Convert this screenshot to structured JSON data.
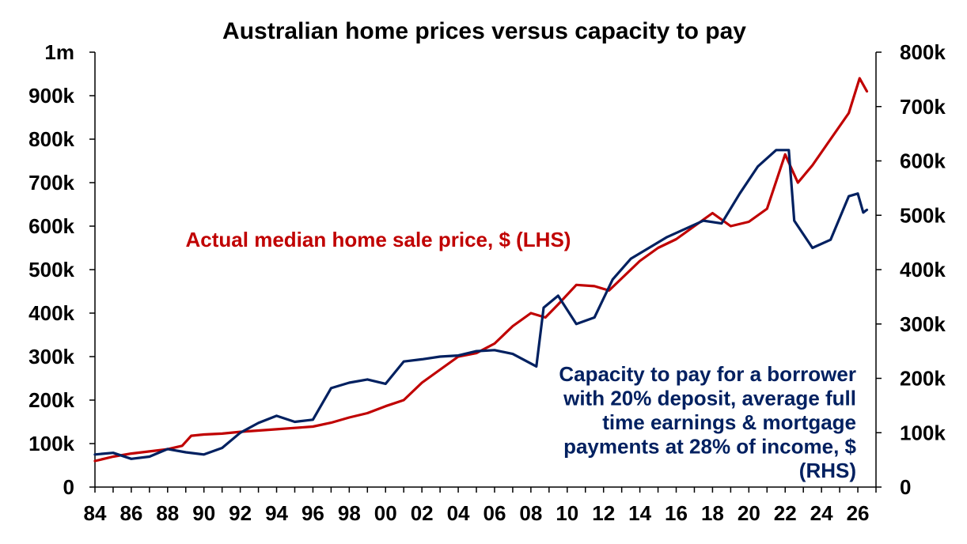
{
  "chart_data": {
    "type": "line",
    "title": "Australian home prices versus capacity to pay",
    "x_range": [
      1984,
      2027
    ],
    "x_tick_values": [
      1984,
      1986,
      1988,
      1990,
      1992,
      1994,
      1996,
      1998,
      2000,
      2002,
      2004,
      2006,
      2008,
      2010,
      2012,
      2014,
      2016,
      2018,
      2020,
      2022,
      2024,
      2026
    ],
    "x_tick_labels": [
      "84",
      "86",
      "88",
      "90",
      "92",
      "94",
      "96",
      "98",
      "00",
      "02",
      "04",
      "06",
      "08",
      "10",
      "12",
      "14",
      "16",
      "18",
      "20",
      "22",
      "24",
      "26"
    ],
    "y_left": {
      "range": [
        0,
        1000000
      ],
      "ticks": [
        0,
        100000,
        200000,
        300000,
        400000,
        500000,
        600000,
        700000,
        800000,
        900000,
        1000000
      ],
      "tick_labels": [
        "0",
        "100k",
        "200k",
        "300k",
        "400k",
        "500k",
        "600k",
        "700k",
        "800k",
        "900k",
        "1m"
      ]
    },
    "y_right": {
      "range": [
        0,
        800000
      ],
      "ticks": [
        0,
        100000,
        200000,
        300000,
        400000,
        500000,
        600000,
        700000,
        800000
      ],
      "tick_labels": [
        "0",
        "100k",
        "200k",
        "300k",
        "400k",
        "500k",
        "600k",
        "700k",
        "800k"
      ]
    },
    "grid": false,
    "legend": "none",
    "series": [
      {
        "axis": "left",
        "color": "#c00000",
        "points": [
          [
            1984,
            60000
          ],
          [
            1985,
            70000
          ],
          [
            1986,
            77000
          ],
          [
            1987,
            82000
          ],
          [
            1988,
            87000
          ],
          [
            1988.8,
            95000
          ],
          [
            1989.3,
            118000
          ],
          [
            1990,
            121000
          ],
          [
            1991,
            123000
          ],
          [
            1992,
            127000
          ],
          [
            1993,
            130000
          ],
          [
            1994,
            133000
          ],
          [
            1995,
            136000
          ],
          [
            1996,
            139000
          ],
          [
            1997,
            148000
          ],
          [
            1998,
            160000
          ],
          [
            1999,
            170000
          ],
          [
            2000,
            186000
          ],
          [
            2001,
            200000
          ],
          [
            2002,
            240000
          ],
          [
            2003,
            270000
          ],
          [
            2004,
            300000
          ],
          [
            2005,
            308000
          ],
          [
            2006,
            330000
          ],
          [
            2007,
            370000
          ],
          [
            2008,
            400000
          ],
          [
            2008.8,
            390000
          ],
          [
            2009.5,
            420000
          ],
          [
            2010.5,
            465000
          ],
          [
            2011.5,
            462000
          ],
          [
            2012.3,
            452000
          ],
          [
            2013,
            480000
          ],
          [
            2014,
            520000
          ],
          [
            2015,
            550000
          ],
          [
            2016,
            570000
          ],
          [
            2017,
            600000
          ],
          [
            2018,
            630000
          ],
          [
            2019,
            600000
          ],
          [
            2020,
            610000
          ],
          [
            2021,
            640000
          ],
          [
            2022,
            765000
          ],
          [
            2022.7,
            700000
          ],
          [
            2023.5,
            740000
          ],
          [
            2024.5,
            800000
          ],
          [
            2025.5,
            860000
          ],
          [
            2026.1,
            940000
          ],
          [
            2026.5,
            910000
          ]
        ]
      },
      {
        "axis": "right",
        "color": "#002060",
        "points": [
          [
            1984,
            60000
          ],
          [
            1985,
            63000
          ],
          [
            1986,
            52000
          ],
          [
            1987,
            56000
          ],
          [
            1988,
            70000
          ],
          [
            1989,
            64000
          ],
          [
            1990,
            60000
          ],
          [
            1991,
            72000
          ],
          [
            1992,
            100000
          ],
          [
            1993,
            118000
          ],
          [
            1994,
            131000
          ],
          [
            1995,
            120000
          ],
          [
            1996,
            124000
          ],
          [
            1997,
            182000
          ],
          [
            1998,
            192000
          ],
          [
            1999,
            198000
          ],
          [
            2000,
            190000
          ],
          [
            2001,
            231000
          ],
          [
            2002,
            235000
          ],
          [
            2003,
            240000
          ],
          [
            2004,
            242000
          ],
          [
            2005,
            250000
          ],
          [
            2006,
            252000
          ],
          [
            2007,
            245000
          ],
          [
            2008.3,
            222000
          ],
          [
            2008.7,
            330000
          ],
          [
            2009.5,
            352000
          ],
          [
            2010.5,
            300000
          ],
          [
            2011.5,
            312000
          ],
          [
            2012.5,
            382000
          ],
          [
            2013.5,
            420000
          ],
          [
            2014.5,
            440000
          ],
          [
            2015.5,
            460000
          ],
          [
            2016.5,
            475000
          ],
          [
            2017.5,
            490000
          ],
          [
            2018.5,
            485000
          ],
          [
            2019.5,
            540000
          ],
          [
            2020.5,
            590000
          ],
          [
            2021.5,
            620000
          ],
          [
            2022.2,
            620000
          ],
          [
            2022.5,
            490000
          ],
          [
            2023.5,
            440000
          ],
          [
            2024.5,
            455000
          ],
          [
            2025.5,
            535000
          ],
          [
            2026,
            540000
          ],
          [
            2026.3,
            505000
          ],
          [
            2026.5,
            510000
          ]
        ]
      }
    ],
    "annotations": [
      {
        "series_axis": "left",
        "color": "#c00000",
        "lines": [
          "Actual median home sale price, $ (LHS)"
        ]
      },
      {
        "series_axis": "right",
        "color": "#002060",
        "lines": [
          "Capacity to pay for a borrower",
          "with 20% deposit, average full",
          "time earnings & mortgage",
          "payments at 28% of income, $",
          "(RHS)"
        ]
      }
    ]
  }
}
